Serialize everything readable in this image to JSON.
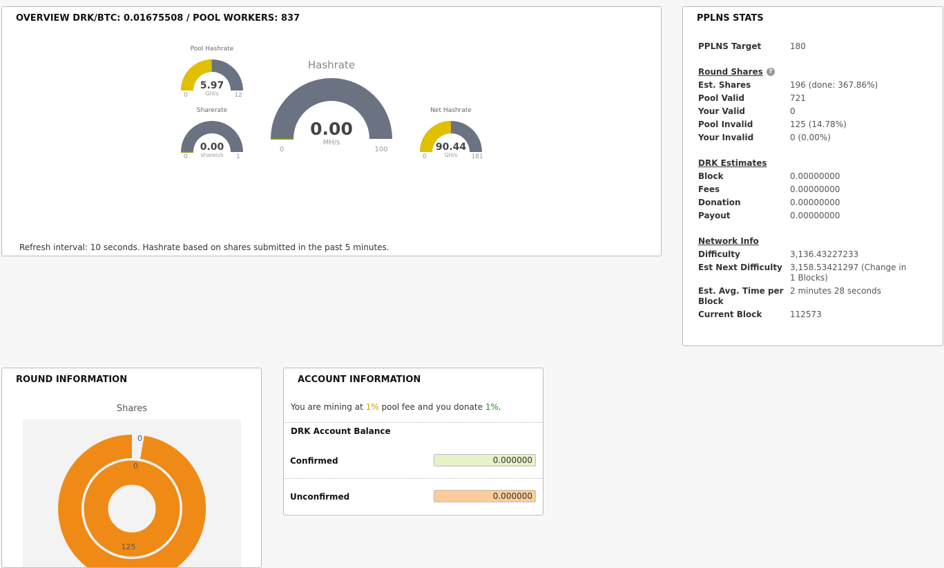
{
  "overview": {
    "title": "OVERVIEW DRK/BTC: 0.01675508 / POOL WORKERS: 837",
    "gauges": [
      {
        "label": "Pool Hashrate",
        "value": "5.97",
        "unit": "GH/s",
        "min": 0,
        "max": 12
      },
      {
        "label": "Sharerate",
        "value": "0.00",
        "unit": "shares/s",
        "min": 0,
        "max": 1
      },
      {
        "label": "Hashrate",
        "value": "0.00",
        "unit": "MH/s",
        "min": 0,
        "max": 100
      },
      {
        "label": "Net Hashrate",
        "value": "90.44",
        "unit": "GH/s",
        "min": 0,
        "max": 181
      }
    ],
    "note": "Refresh interval: 10 seconds. Hashrate based on shares submitted in the past 5 minutes."
  },
  "pplns": {
    "title": "PPLNS STATS",
    "target": {
      "label": "PPLNS Target",
      "value": "180"
    },
    "sections": [
      {
        "heading": "Round Shares",
        "rows": [
          {
            "label": "Est. Shares",
            "value": "196 (done: 367.86%)"
          },
          {
            "label": "Pool Valid",
            "value": "721"
          },
          {
            "label": "Your Valid",
            "value": "0"
          },
          {
            "label": "Pool Invalid",
            "value": "125 (14.78%)"
          },
          {
            "label": "Your Invalid",
            "value": "0 (0.00%)"
          }
        ]
      },
      {
        "heading": "DRK Estimates",
        "rows": [
          {
            "label": "Block",
            "value": "0.00000000"
          },
          {
            "label": "Fees",
            "value": "0.00000000"
          },
          {
            "label": "Donation",
            "value": "0.00000000"
          },
          {
            "label": "Payout",
            "value": "0.00000000"
          }
        ]
      },
      {
        "heading": "Network Info",
        "rows": [
          {
            "label": "Difficulty",
            "value": "3,136.43227233"
          },
          {
            "label": "Est Next Difficulty",
            "value": "3,158.53421297 (Change in 1 Blocks)"
          },
          {
            "label": "Est. Avg. Time per Block",
            "value": "2 minutes 28 seconds"
          },
          {
            "label": "Current Block",
            "value": "112573"
          }
        ]
      }
    ]
  },
  "round": {
    "title": "ROUND INFORMATION",
    "chart_title": "Shares",
    "labels": [
      "0",
      "0",
      "125"
    ]
  },
  "account": {
    "title": "ACCOUNT INFORMATION",
    "fee": {
      "prefix": "You are mining at",
      "fee": "1%",
      "middle": "pool fee and you donate",
      "donation": "1%",
      "suffix": "."
    },
    "balance_heading": "DRK Account Balance",
    "confirmed": {
      "label": "Confirmed",
      "value": "0.000000"
    },
    "unconfirmed": {
      "label": "Unconfirmed",
      "value": "0.000000"
    }
  }
}
